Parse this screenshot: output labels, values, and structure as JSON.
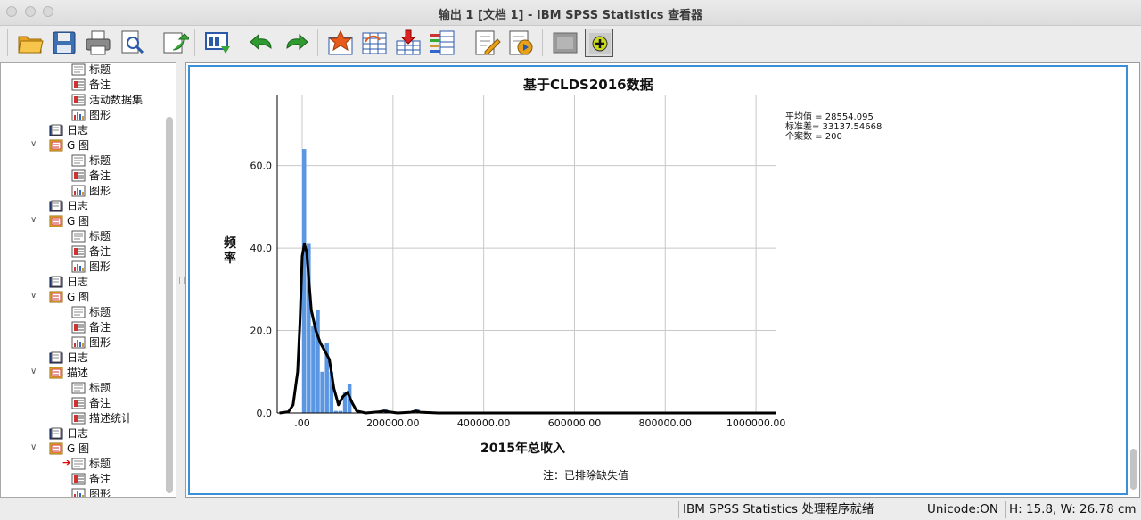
{
  "window": {
    "title": "输出 1 [文档 1] - IBM SPSS Statistics 查看器"
  },
  "toolbar": {
    "buttons": [
      "open-icon",
      "save-icon",
      "print-icon",
      "print-preview-icon",
      "export-icon",
      "recall-dialog-icon",
      "undo-icon",
      "redo-icon",
      "goto-data-icon",
      "goto-case-icon",
      "insert-variable-icon",
      "variables-icon",
      "designate-window-icon",
      "script-icon",
      "script-run-icon",
      "hide-icon",
      "show-icon"
    ]
  },
  "tree": {
    "items": [
      {
        "label": "标题",
        "icon": "title-icon",
        "level": 2
      },
      {
        "label": "备注",
        "icon": "notes-icon",
        "level": 2
      },
      {
        "label": "活动数据集",
        "icon": "dataset-icon",
        "level": 2
      },
      {
        "label": "图形",
        "icon": "graph-icon",
        "level": 2
      },
      {
        "label": "日志",
        "icon": "log-icon",
        "level": 1
      },
      {
        "label": "G 图",
        "icon": "folder-icon",
        "level": 1,
        "expandable": true
      },
      {
        "label": "标题",
        "icon": "title-icon",
        "level": 2
      },
      {
        "label": "备注",
        "icon": "notes-icon",
        "level": 2
      },
      {
        "label": "图形",
        "icon": "graph-icon",
        "level": 2
      },
      {
        "label": "日志",
        "icon": "log-icon",
        "level": 1
      },
      {
        "label": "G 图",
        "icon": "folder-icon",
        "level": 1,
        "expandable": true
      },
      {
        "label": "标题",
        "icon": "title-icon",
        "level": 2
      },
      {
        "label": "备注",
        "icon": "notes-icon",
        "level": 2
      },
      {
        "label": "图形",
        "icon": "graph-icon",
        "level": 2
      },
      {
        "label": "日志",
        "icon": "log-icon",
        "level": 1
      },
      {
        "label": "G 图",
        "icon": "folder-icon",
        "level": 1,
        "expandable": true
      },
      {
        "label": "标题",
        "icon": "title-icon",
        "level": 2
      },
      {
        "label": "备注",
        "icon": "notes-icon",
        "level": 2
      },
      {
        "label": "图形",
        "icon": "graph-icon",
        "level": 2
      },
      {
        "label": "日志",
        "icon": "log-icon",
        "level": 1
      },
      {
        "label": "描述",
        "icon": "folder-icon",
        "level": 1,
        "expandable": true
      },
      {
        "label": "标题",
        "icon": "title-icon",
        "level": 2
      },
      {
        "label": "备注",
        "icon": "notes-icon",
        "level": 2
      },
      {
        "label": "描述统计",
        "icon": "table-icon",
        "level": 2
      },
      {
        "label": "日志",
        "icon": "log-icon",
        "level": 1
      },
      {
        "label": "G 图",
        "icon": "folder-icon",
        "level": 1,
        "expandable": true
      },
      {
        "label": "标题",
        "icon": "title-icon",
        "level": 2,
        "current": true
      },
      {
        "label": "备注",
        "icon": "notes-icon",
        "level": 2
      },
      {
        "label": "图形",
        "icon": "graph-icon",
        "level": 2
      }
    ]
  },
  "stats": {
    "mean": "平均值 = 28554.095",
    "sd": "标准差= 33137.54668",
    "n": "个案数 = 200"
  },
  "note": "注：已排除缺失值",
  "status": {
    "message": "IBM SPSS Statistics 处理程序就绪",
    "unicode": "Unicode:ON",
    "size": "H: 15.8, W: 26.78 cm"
  },
  "chart_data": {
    "type": "bar",
    "title": "基于CLDS2016数据",
    "xlabel": "2015年总收入",
    "ylabel": "频率",
    "xlim": [
      -55000,
      1045000
    ],
    "ylim": [
      0,
      77
    ],
    "xticks": [
      ".00",
      "200000.00",
      "400000.00",
      "600000.00",
      "800000.00",
      "1000000.00"
    ],
    "xtick_values": [
      0,
      200000,
      400000,
      600000,
      800000,
      1000000
    ],
    "yticks": [
      "0.0",
      "20.0",
      "40.0",
      "60.0"
    ],
    "ytick_values": [
      0,
      20,
      40,
      60
    ],
    "bin_width": 10000,
    "bars": [
      {
        "x": 0,
        "y": 64
      },
      {
        "x": 10000,
        "y": 41
      },
      {
        "x": 20000,
        "y": 21
      },
      {
        "x": 30000,
        "y": 25
      },
      {
        "x": 40000,
        "y": 10
      },
      {
        "x": 50000,
        "y": 17
      },
      {
        "x": 60000,
        "y": 10
      },
      {
        "x": 70000,
        "y": 0.5
      },
      {
        "x": 80000,
        "y": 0.5
      },
      {
        "x": 90000,
        "y": 5
      },
      {
        "x": 100000,
        "y": 7
      },
      {
        "x": 180000,
        "y": 1
      },
      {
        "x": 250000,
        "y": 1
      }
    ],
    "bar_color": "#5b96e2",
    "normal_curve": [
      [
        -50000,
        0
      ],
      [
        -30000,
        0.3
      ],
      [
        -20000,
        2
      ],
      [
        -10000,
        10
      ],
      [
        -5000,
        22
      ],
      [
        0,
        38
      ],
      [
        5000,
        41
      ],
      [
        10000,
        39
      ],
      [
        15000,
        32
      ],
      [
        20000,
        25
      ],
      [
        30000,
        20
      ],
      [
        40000,
        17
      ],
      [
        50000,
        15
      ],
      [
        60000,
        13
      ],
      [
        70000,
        6
      ],
      [
        80000,
        2
      ],
      [
        90000,
        4
      ],
      [
        100000,
        5
      ],
      [
        110000,
        2.5
      ],
      [
        120000,
        0.5
      ],
      [
        140000,
        0
      ],
      [
        170000,
        0.3
      ],
      [
        180000,
        0.5
      ],
      [
        190000,
        0.3
      ],
      [
        210000,
        0
      ],
      [
        240000,
        0.2
      ],
      [
        250000,
        0.5
      ],
      [
        260000,
        0.2
      ],
      [
        300000,
        0
      ],
      [
        1045000,
        0
      ]
    ],
    "grid": true
  }
}
